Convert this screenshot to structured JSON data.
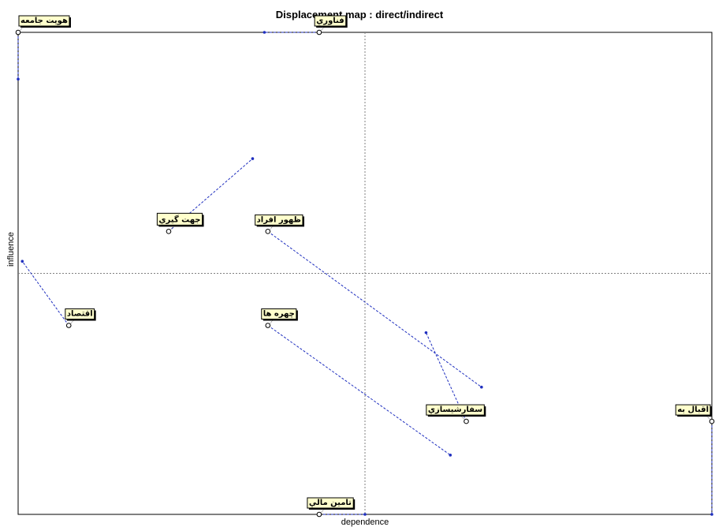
{
  "chart_data": {
    "type": "scatter",
    "title": "Displacement map :  direct/indirect",
    "xlabel": "dependence",
    "ylabel": "influence",
    "grid": false,
    "xlim": [
      0,
      100
    ],
    "ylim": [
      0,
      100
    ],
    "crosshair": {
      "x": 50,
      "y": 50
    },
    "series": [
      {
        "points": [
          {
            "label": "هويت جامعه",
            "x": 0.0,
            "y": 100.0,
            "dx": 0.0,
            "dy": 90.3
          },
          {
            "label": "فناوري",
            "x": 43.4,
            "y": 100.0,
            "dx": 35.5,
            "dy": 100.0
          },
          {
            "label": "جهت گيري",
            "x": 21.7,
            "y": 58.7,
            "dx": 33.8,
            "dy": 73.8
          },
          {
            "label": "ظهور افراد",
            "x": 36.0,
            "y": 58.7,
            "dx": 66.8,
            "dy": 26.4
          },
          {
            "label": "اقتصاد",
            "x": 7.3,
            "y": 39.2,
            "dx": 0.6,
            "dy": 52.5
          },
          {
            "label": "چهره ها",
            "x": 36.0,
            "y": 39.2,
            "dx": 62.3,
            "dy": 12.3
          },
          {
            "label": "سفارشيسازي",
            "x": 64.6,
            "y": 19.3,
            "dx": 58.8,
            "dy": 37.7
          },
          {
            "label": "اقبال به",
            "x": 100.0,
            "y": 19.3,
            "dx": 100.0,
            "dy": 0.0
          },
          {
            "label": "تامين مالي",
            "x": 43.4,
            "y": 0.0,
            "dx": 50.0,
            "dy": 0.0
          }
        ]
      }
    ],
    "colors": {
      "displacement": "#1f2fbf",
      "crosshair": "#808080",
      "frame": "#000000",
      "label_bg": "#ffffcc"
    }
  }
}
